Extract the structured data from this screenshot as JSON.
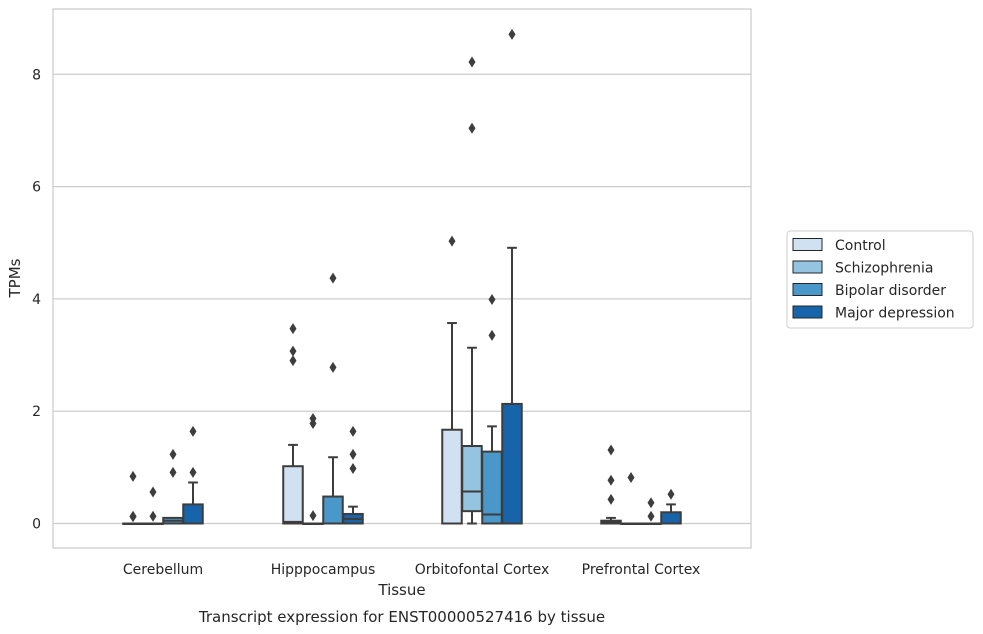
{
  "chart_data": {
    "type": "box",
    "caption": "Transcript expression for ENST00000527416 by tissue",
    "xlabel": "Tissue",
    "ylabel": "TPMs",
    "ylim": [
      -0.42,
      9.2
    ],
    "yticks": [
      0,
      2,
      4,
      6,
      8
    ],
    "grid": "horizontal",
    "legend_position": "right",
    "categories": [
      "Cerebellum",
      "Hipppocampus",
      "Orbitofontal Cortex",
      "Prefrontal Cortex"
    ],
    "series": [
      {
        "name": "Control",
        "color": "#d0e1f2"
      },
      {
        "name": "Schizophrenia",
        "color": "#94c4df"
      },
      {
        "name": "Bipolar disorder",
        "color": "#4a98c9"
      },
      {
        "name": "Major depression",
        "color": "#1764ab"
      }
    ],
    "boxes": [
      [
        {
          "q1": 0,
          "median": 0,
          "q3": 0,
          "whisker_low": 0,
          "whisker_high": 0,
          "outliers": [
            0.84,
            0.13,
            0.12
          ]
        },
        {
          "q1": 0,
          "median": 0,
          "q3": 0,
          "whisker_low": 0,
          "whisker_high": 0,
          "outliers": [
            0.56,
            0.13
          ]
        },
        {
          "q1": 0,
          "median": 0.05,
          "q3": 0.1,
          "whisker_low": 0,
          "whisker_high": 0.1,
          "outliers": [
            1.23,
            0.91
          ]
        },
        {
          "q1": 0,
          "median": 0,
          "q3": 0.34,
          "whisker_low": 0,
          "whisker_high": 0.73,
          "outliers": [
            1.64,
            0.91
          ]
        }
      ],
      [
        {
          "q1": 0,
          "median": 0.03,
          "q3": 1.02,
          "whisker_low": 0,
          "whisker_high": 1.4,
          "outliers": [
            3.47,
            3.07,
            2.9
          ]
        },
        {
          "q1": 0,
          "median": 0,
          "q3": 0,
          "whisker_low": 0,
          "whisker_high": 0,
          "outliers": [
            1.87,
            1.78,
            0.14
          ]
        },
        {
          "q1": 0,
          "median": 0,
          "q3": 0.48,
          "whisker_low": 0,
          "whisker_high": 1.18,
          "outliers": [
            4.37,
            2.78
          ]
        },
        {
          "q1": 0,
          "median": 0.08,
          "q3": 0.17,
          "whisker_low": 0,
          "whisker_high": 0.3,
          "outliers": [
            1.64,
            1.23,
            0.98
          ]
        }
      ],
      [
        {
          "q1": 0,
          "median": 0,
          "q3": 1.67,
          "whisker_low": 0,
          "whisker_high": 3.57,
          "outliers": [
            5.03
          ]
        },
        {
          "q1": 0.22,
          "median": 0.57,
          "q3": 1.38,
          "whisker_low": 0,
          "whisker_high": 3.13,
          "outliers": [
            8.22,
            7.04
          ]
        },
        {
          "q1": 0,
          "median": 0.16,
          "q3": 1.28,
          "whisker_low": 0,
          "whisker_high": 1.73,
          "outliers": [
            3.99,
            3.35
          ]
        },
        {
          "q1": 0,
          "median": 0,
          "q3": 2.13,
          "whisker_low": 0,
          "whisker_high": 4.91,
          "outliers": [
            8.71
          ]
        }
      ],
      [
        {
          "q1": 0,
          "median": 0.02,
          "q3": 0.05,
          "whisker_low": 0,
          "whisker_high": 0.1,
          "outliers": [
            1.31,
            0.77,
            0.43
          ]
        },
        {
          "q1": 0,
          "median": 0,
          "q3": 0,
          "whisker_low": 0,
          "whisker_high": 0,
          "outliers": [
            0.82
          ]
        },
        {
          "q1": 0,
          "median": 0,
          "q3": 0,
          "whisker_low": 0,
          "whisker_high": 0,
          "outliers": [
            0.37,
            0.13
          ]
        },
        {
          "q1": 0,
          "median": 0,
          "q3": 0.2,
          "whisker_low": 0,
          "whisker_high": 0.34,
          "outliers": [
            0.52
          ]
        }
      ]
    ]
  }
}
